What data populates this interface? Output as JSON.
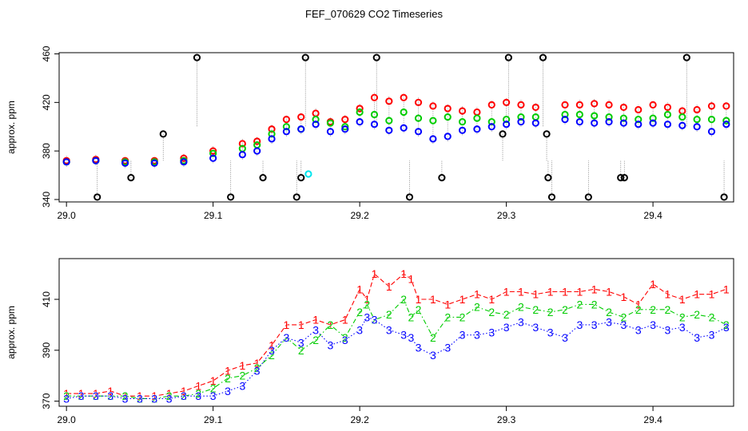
{
  "figure": {
    "title": "FEF_070629  CO2 Timeseries"
  },
  "chart_data": [
    {
      "type": "scatter",
      "title": "FEF_070629  CO2 Timeseries",
      "xlabel": "",
      "ylabel": "approx. ppm",
      "xlim": [
        28.995,
        29.455
      ],
      "ylim": [
        338,
        461
      ],
      "x_ticks": [
        "29.0",
        "29.1",
        "29.2",
        "29.3",
        "29.4"
      ],
      "y_ticks": [
        "340",
        "380",
        "420",
        "460"
      ],
      "grid": false,
      "legend": "none",
      "colors": {
        "level1": "#ff0000",
        "level2": "#00cc00",
        "level3": "#0000ff",
        "black": "#000000",
        "cyan": "#00e5ee"
      },
      "series": [
        {
          "color": "#ff0000",
          "x": [
            29.0,
            29.02,
            29.04,
            29.06,
            29.08,
            29.1,
            29.12,
            29.13,
            29.14,
            29.15,
            29.16,
            29.17,
            29.18,
            29.19,
            29.2,
            29.21,
            29.22,
            29.23,
            29.24,
            29.25,
            29.26,
            29.27,
            29.28,
            29.29,
            29.3,
            29.31,
            29.32,
            29.34,
            29.35,
            29.36,
            29.37,
            29.38,
            29.39,
            29.4,
            29.41,
            29.42,
            29.43,
            29.44,
            29.45
          ],
          "y": [
            372,
            373,
            372,
            372,
            374,
            380,
            386,
            388,
            398,
            406,
            408,
            411,
            404,
            406,
            415,
            424,
            421,
            424,
            420,
            417,
            415,
            413,
            412,
            418,
            420,
            418,
            416,
            418,
            418,
            419,
            418,
            416,
            414,
            418,
            416,
            413,
            414,
            417,
            417
          ]
        },
        {
          "color": "#00cc00",
          "x": [
            29.0,
            29.02,
            29.04,
            29.06,
            29.08,
            29.1,
            29.12,
            29.13,
            29.14,
            29.15,
            29.16,
            29.17,
            29.18,
            29.19,
            29.2,
            29.21,
            29.22,
            29.23,
            29.24,
            29.25,
            29.26,
            29.27,
            29.28,
            29.29,
            29.3,
            29.31,
            29.32,
            29.34,
            29.35,
            29.36,
            29.37,
            29.38,
            29.39,
            29.4,
            29.41,
            29.42,
            29.43,
            29.44,
            29.45
          ],
          "y": [
            371,
            372,
            371,
            371,
            372,
            378,
            382,
            385,
            394,
            400,
            398,
            406,
            403,
            400,
            412,
            410,
            405,
            412,
            407,
            405,
            408,
            404,
            407,
            404,
            406,
            408,
            408,
            410,
            410,
            409,
            408,
            407,
            406,
            407,
            410,
            408,
            406,
            406,
            405
          ]
        },
        {
          "color": "#0000ff",
          "x": [
            29.0,
            29.02,
            29.04,
            29.06,
            29.08,
            29.1,
            29.12,
            29.13,
            29.14,
            29.15,
            29.16,
            29.17,
            29.18,
            29.19,
            29.2,
            29.21,
            29.22,
            29.23,
            29.24,
            29.25,
            29.26,
            29.27,
            29.28,
            29.29,
            29.3,
            29.31,
            29.32,
            29.34,
            29.35,
            29.36,
            29.37,
            29.38,
            29.39,
            29.4,
            29.41,
            29.42,
            29.43,
            29.44,
            29.45
          ],
          "y": [
            371,
            372,
            370,
            370,
            371,
            374,
            377,
            380,
            390,
            396,
            398,
            402,
            396,
            398,
            404,
            402,
            397,
            399,
            396,
            390,
            392,
            397,
            398,
            400,
            402,
            404,
            403,
            406,
            404,
            403,
            404,
            403,
            402,
            403,
            402,
            401,
            400,
            396,
            402
          ]
        },
        {
          "color": "#000000",
          "x": [
            29.021,
            29.044,
            29.066,
            29.089,
            29.112,
            29.134,
            29.157,
            29.16,
            29.163,
            29.2115,
            29.234,
            29.256,
            29.2975,
            29.3015,
            29.325,
            29.3275,
            29.3285,
            29.331,
            29.356,
            29.378,
            29.3805,
            29.423,
            29.4485
          ],
          "y": [
            342,
            358,
            394,
            457,
            342,
            358,
            342,
            358,
            457,
            457,
            342,
            358,
            394,
            457,
            457,
            394,
            358,
            342,
            342,
            358,
            358,
            457,
            342
          ]
        },
        {
          "color": "#00e5ee",
          "x": [
            29.165
          ],
          "y": [
            361
          ]
        }
      ]
    },
    {
      "type": "line",
      "xlabel": "",
      "ylabel": "approx. ppm",
      "xlim": [
        28.995,
        29.455
      ],
      "ylim": [
        368,
        426
      ],
      "x_ticks": [
        "29.0",
        "29.1",
        "29.2",
        "29.3",
        "29.4"
      ],
      "y_ticks": [
        "370",
        "390",
        "410"
      ],
      "grid": false,
      "legend": "none",
      "series": [
        {
          "marker": "1",
          "color": "#ff0000",
          "x": [
            29.0,
            29.01,
            29.02,
            29.03,
            29.04,
            29.05,
            29.06,
            29.07,
            29.08,
            29.09,
            29.1,
            29.11,
            29.12,
            29.13,
            29.14,
            29.15,
            29.16,
            29.17,
            29.18,
            29.19,
            29.2,
            29.205,
            29.21,
            29.22,
            29.23,
            29.235,
            29.24,
            29.25,
            29.26,
            29.27,
            29.28,
            29.29,
            29.3,
            29.31,
            29.32,
            29.33,
            29.34,
            29.35,
            29.36,
            29.37,
            29.38,
            29.39,
            29.4,
            29.41,
            29.42,
            29.43,
            29.44,
            29.45
          ],
          "y": [
            373,
            373,
            373,
            374,
            372,
            372,
            372,
            373,
            374,
            376,
            378,
            382,
            384,
            385,
            392,
            400,
            400,
            402,
            400,
            402,
            414,
            410,
            420,
            415,
            420,
            418,
            410,
            410,
            408,
            410,
            412,
            410,
            413,
            413,
            412,
            413,
            413,
            413,
            414,
            413,
            411,
            408,
            416,
            412,
            410,
            412,
            412,
            414
          ]
        },
        {
          "marker": "2",
          "color": "#00cc00",
          "x": [
            29.0,
            29.01,
            29.02,
            29.03,
            29.04,
            29.05,
            29.06,
            29.07,
            29.08,
            29.09,
            29.1,
            29.11,
            29.12,
            29.13,
            29.14,
            29.15,
            29.16,
            29.17,
            29.18,
            29.19,
            29.2,
            29.205,
            29.21,
            29.22,
            29.23,
            29.235,
            29.24,
            29.25,
            29.26,
            29.27,
            29.28,
            29.29,
            29.3,
            29.31,
            29.32,
            29.33,
            29.34,
            29.35,
            29.36,
            29.37,
            29.38,
            29.39,
            29.4,
            29.41,
            29.42,
            29.43,
            29.44,
            29.45
          ],
          "y": [
            372,
            372,
            372,
            372,
            372,
            371,
            371,
            372,
            372,
            373,
            375,
            379,
            380,
            383,
            388,
            395,
            390,
            394,
            400,
            395,
            405,
            408,
            402,
            404,
            410,
            403,
            406,
            395,
            403,
            403,
            407,
            405,
            404,
            407,
            406,
            405,
            406,
            408,
            408,
            405,
            403,
            406,
            406,
            406,
            403,
            404,
            403,
            400
          ]
        },
        {
          "marker": "3",
          "color": "#0000ff",
          "x": [
            29.0,
            29.01,
            29.02,
            29.03,
            29.04,
            29.05,
            29.06,
            29.07,
            29.08,
            29.09,
            29.1,
            29.11,
            29.12,
            29.13,
            29.14,
            29.15,
            29.16,
            29.17,
            29.18,
            29.19,
            29.2,
            29.205,
            29.21,
            29.22,
            29.23,
            29.235,
            29.24,
            29.25,
            29.26,
            29.27,
            29.28,
            29.29,
            29.3,
            29.31,
            29.32,
            29.33,
            29.34,
            29.35,
            29.36,
            29.37,
            29.38,
            29.39,
            29.4,
            29.41,
            29.42,
            29.43,
            29.44,
            29.45
          ],
          "y": [
            371,
            372,
            372,
            372,
            371,
            371,
            371,
            371,
            372,
            372,
            372,
            374,
            376,
            382,
            390,
            395,
            393,
            398,
            392,
            394,
            398,
            403,
            402,
            398,
            396,
            395,
            391,
            388,
            391,
            396,
            396,
            397,
            399,
            401,
            399,
            397,
            395,
            400,
            400,
            401,
            400,
            398,
            400,
            398,
            399,
            395,
            396,
            399
          ]
        }
      ]
    }
  ]
}
